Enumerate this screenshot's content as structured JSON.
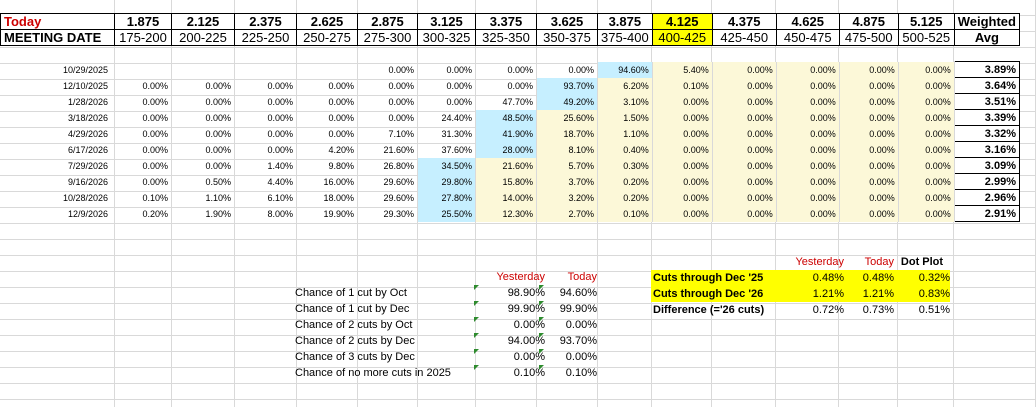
{
  "header": {
    "today_label": "Today",
    "meeting_date_label": "MEETING DATE",
    "weighted_label": "Weighted",
    "avg_label": "Avg",
    "midpoints": [
      "1.875",
      "2.125",
      "2.375",
      "2.625",
      "2.875",
      "3.125",
      "3.375",
      "3.625",
      "3.875",
      "4.125",
      "4.375",
      "4.625",
      "4.875",
      "5.125"
    ],
    "ranges": [
      "175-200",
      "200-225",
      "225-250",
      "250-275",
      "275-300",
      "300-325",
      "325-350",
      "350-375",
      "375-400",
      "400-425",
      "425-450",
      "450-475",
      "475-500",
      "500-525"
    ],
    "highlight_index": 9
  },
  "rows": [
    {
      "date": "10/29/2025",
      "cells": [
        "",
        "",
        "",
        "",
        "0.00%",
        "0.00%",
        "0.00%",
        "0.00%",
        "94.60%",
        "5.40%",
        "0.00%",
        "0.00%",
        "0.00%",
        "0.00%"
      ],
      "avg": "3.89%",
      "blue": 8
    },
    {
      "date": "12/10/2025",
      "cells": [
        "0.00%",
        "0.00%",
        "0.00%",
        "0.00%",
        "0.00%",
        "0.00%",
        "0.00%",
        "93.70%",
        "6.20%",
        "0.10%",
        "0.00%",
        "0.00%",
        "0.00%",
        "0.00%"
      ],
      "avg": "3.64%",
      "blue": 7
    },
    {
      "date": "1/28/2026",
      "cells": [
        "0.00%",
        "0.00%",
        "0.00%",
        "0.00%",
        "0.00%",
        "0.00%",
        "47.70%",
        "49.20%",
        "3.10%",
        "0.00%",
        "0.00%",
        "0.00%",
        "0.00%",
        "0.00%"
      ],
      "avg": "3.51%",
      "blue": 7
    },
    {
      "date": "3/18/2026",
      "cells": [
        "0.00%",
        "0.00%",
        "0.00%",
        "0.00%",
        "0.00%",
        "24.40%",
        "48.50%",
        "25.60%",
        "1.50%",
        "0.00%",
        "0.00%",
        "0.00%",
        "0.00%",
        "0.00%"
      ],
      "avg": "3.39%",
      "blue": 6
    },
    {
      "date": "4/29/2026",
      "cells": [
        "0.00%",
        "0.00%",
        "0.00%",
        "0.00%",
        "7.10%",
        "31.30%",
        "41.90%",
        "18.70%",
        "1.10%",
        "0.00%",
        "0.00%",
        "0.00%",
        "0.00%",
        "0.00%"
      ],
      "avg": "3.32%",
      "blue": 6
    },
    {
      "date": "6/17/2026",
      "cells": [
        "0.00%",
        "0.00%",
        "0.00%",
        "4.20%",
        "21.60%",
        "37.60%",
        "28.00%",
        "8.10%",
        "0.40%",
        "0.00%",
        "0.00%",
        "0.00%",
        "0.00%",
        "0.00%"
      ],
      "avg": "3.16%",
      "blue": 6
    },
    {
      "date": "7/29/2026",
      "cells": [
        "0.00%",
        "0.00%",
        "1.40%",
        "9.80%",
        "26.80%",
        "34.50%",
        "21.60%",
        "5.70%",
        "0.30%",
        "0.00%",
        "0.00%",
        "0.00%",
        "0.00%",
        "0.00%"
      ],
      "avg": "3.09%",
      "blue": 5
    },
    {
      "date": "9/16/2026",
      "cells": [
        "0.00%",
        "0.50%",
        "4.40%",
        "16.00%",
        "29.60%",
        "29.80%",
        "15.80%",
        "3.70%",
        "0.20%",
        "0.00%",
        "0.00%",
        "0.00%",
        "0.00%",
        "0.00%"
      ],
      "avg": "2.99%",
      "blue": 5
    },
    {
      "date": "10/28/2026",
      "cells": [
        "0.10%",
        "1.10%",
        "6.10%",
        "18.00%",
        "29.60%",
        "27.80%",
        "14.00%",
        "3.20%",
        "0.20%",
        "0.00%",
        "0.00%",
        "0.00%",
        "0.00%",
        "0.00%"
      ],
      "avg": "2.96%",
      "blue": 5
    },
    {
      "date": "12/9/2026",
      "cells": [
        "0.20%",
        "1.90%",
        "8.00%",
        "19.90%",
        "29.30%",
        "25.50%",
        "12.30%",
        "2.70%",
        "0.10%",
        "0.00%",
        "0.00%",
        "0.00%",
        "0.00%",
        "0.00%"
      ],
      "avg": "2.91%",
      "blue": 5
    }
  ],
  "probabilities": {
    "yesterday_label": "Yesterday",
    "today_label": "Today",
    "items": [
      {
        "label": "Chance of 1 cut by Oct",
        "yesterday": "98.90%",
        "today": "94.60%"
      },
      {
        "label": "Chance of 1 cut by Dec",
        "yesterday": "99.90%",
        "today": "99.90%"
      },
      {
        "label": "Chance of 2 cuts by Oct",
        "yesterday": "0.00%",
        "today": "0.00%"
      },
      {
        "label": "Chance of 2 cuts by Dec",
        "yesterday": "94.00%",
        "today": "93.70%"
      },
      {
        "label": "Chance of 3 cuts by Dec",
        "yesterday": "0.00%",
        "today": "0.00%"
      },
      {
        "label": "Chance of no more cuts in 2025",
        "yesterday": "0.10%",
        "today": "0.10%"
      }
    ]
  },
  "cuts": {
    "yesterday_label": "Yesterday",
    "today_label": "Today",
    "dotplot_label": "Dot Plot",
    "rows": [
      {
        "label": "Cuts through Dec '25",
        "yesterday": "0.48%",
        "today": "0.48%",
        "dotplot": "0.32%"
      },
      {
        "label": "Cuts through Dec '26",
        "yesterday": "1.21%",
        "today": "1.21%",
        "dotplot": "0.83%"
      },
      {
        "label": "Difference (='26 cuts)",
        "yesterday": "0.72%",
        "today": "0.73%",
        "dotplot": "0.51%"
      }
    ]
  },
  "colors": {
    "highlight_yellow": "#ffff00",
    "cream": "#fcf8d8",
    "blue": "#c6efff",
    "red_text": "#cc0000",
    "comment_marker": "#2e8b2e"
  }
}
